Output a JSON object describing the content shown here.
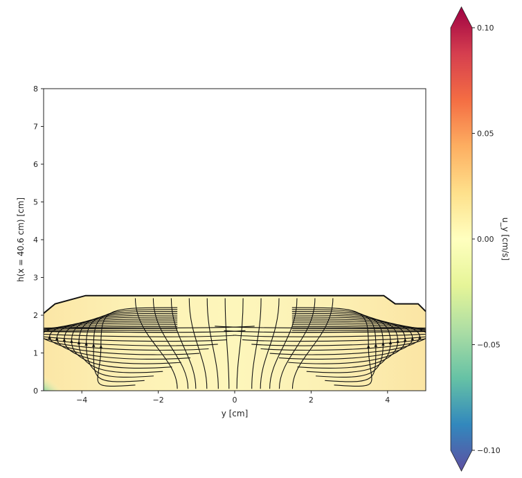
{
  "chart_data": {
    "type": "heatmap",
    "xlabel": "y [cm]",
    "ylabel": "h(x = 40.6 cm) [cm]",
    "xlim": [
      -5,
      5
    ],
    "ylim": [
      0,
      8
    ],
    "x_ticks": [
      -4,
      -2,
      0,
      2,
      4
    ],
    "y_ticks": [
      0,
      1,
      2,
      3,
      4,
      5,
      6,
      7,
      8
    ],
    "x_tick_labels": [
      "−4",
      "−2",
      "0",
      "2",
      "4"
    ],
    "y_tick_labels": [
      "0",
      "1",
      "2",
      "3",
      "4",
      "5",
      "6",
      "7",
      "8"
    ],
    "free_surface": {
      "y": [
        -5.0,
        -4.7,
        -3.9,
        3.9,
        4.2,
        4.8,
        5.0
      ],
      "h": [
        2.05,
        2.3,
        2.52,
        2.52,
        2.3,
        2.3,
        2.1
      ]
    },
    "field_value_note": "",
    "colorbar": {
      "label": "u_y [cm/s]",
      "min": -0.1,
      "max": 0.1,
      "ticks": [
        -0.1,
        -0.05,
        0.0,
        0.05,
        0.1
      ],
      "tick_labels": [
        "−0.10",
        "−0.05",
        "0.00",
        "0.05",
        "0.10"
      ],
      "extend": "both",
      "colormap": "Spectral_r"
    },
    "streamlines": true,
    "grid": false
  }
}
